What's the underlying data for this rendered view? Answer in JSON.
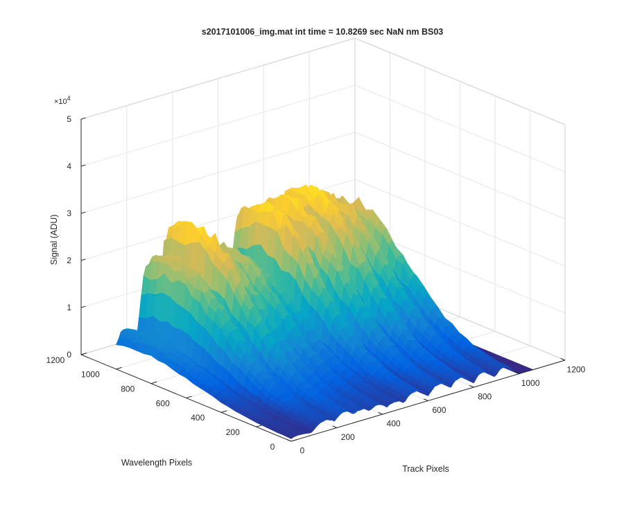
{
  "figure": {
    "title": "s2017101006_img.mat int time = 10.8269 sec  NaN nm BS03"
  },
  "chart_data": {
    "type": "surface",
    "title": "s2017101006_img.mat int time = 10.8269 sec  NaN nm BS03",
    "xlabel": "Track Pixels",
    "ylabel": "Wavelength Pixels",
    "zlabel": "Signal (ADU)",
    "z_exponent_label": "×10",
    "z_exponent_power": "4",
    "xlim": [
      0,
      1200
    ],
    "ylim": [
      0,
      1200
    ],
    "zlim": [
      0,
      50000
    ],
    "x_ticks": [
      "0",
      "200",
      "400",
      "600",
      "800",
      "1000",
      "1200"
    ],
    "y_ticks": [
      "0",
      "200",
      "400",
      "600",
      "800",
      "1000",
      "1200"
    ],
    "z_ticks": [
      "0",
      "1",
      "2",
      "3",
      "4",
      "5"
    ],
    "grid": true,
    "colormap": [
      "#352a87",
      "#0363e1",
      "#1485d4",
      "#06a7c6",
      "#38b99e",
      "#92bf73",
      "#d9ba56",
      "#fcce2e",
      "#f9fb0e"
    ],
    "series": [
      {
        "track_center": 40,
        "track_width": 55,
        "peak_signal": 9000
      },
      {
        "track_center": 150,
        "track_width": 55,
        "peak_signal": 24500
      },
      {
        "track_center": 235,
        "track_width": 50,
        "peak_signal": 31000
      },
      {
        "track_center": 305,
        "track_width": 48,
        "peak_signal": 25500
      },
      {
        "track_center": 380,
        "track_width": 48,
        "peak_signal": 24000
      },
      {
        "track_center": 455,
        "track_width": 45,
        "peak_signal": 20000
      },
      {
        "track_center": 545,
        "track_width": 50,
        "peak_signal": 30500
      },
      {
        "track_center": 650,
        "track_width": 50,
        "peak_signal": 30500
      },
      {
        "track_center": 745,
        "track_width": 50,
        "peak_signal": 31000
      },
      {
        "track_center": 845,
        "track_width": 45,
        "peak_signal": 28000
      },
      {
        "track_center": 935,
        "track_width": 42,
        "peak_signal": 25500
      }
    ],
    "wavelength_profile": {
      "center": 850,
      "width": 420,
      "floor": 0.08
    }
  }
}
